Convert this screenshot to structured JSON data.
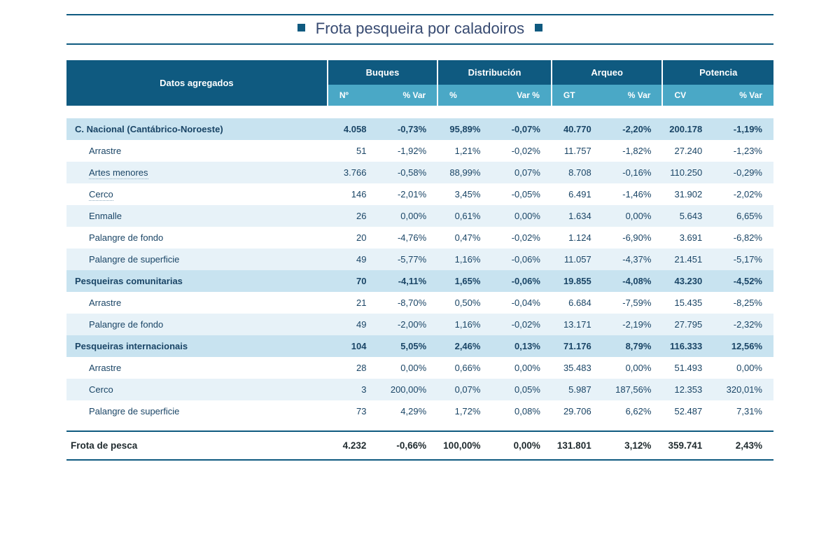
{
  "title": "Frota pesqueira por caladoiros",
  "colors": {
    "header_dark": "#0f5a80",
    "header_light": "#4aa8c6",
    "row_main": "#c8e3f0",
    "row_alt": "#e7f2f8",
    "text_title": "#374a71",
    "text_body": "#1a4566",
    "background": "#ffffff"
  },
  "typography": {
    "family": "Verdana",
    "title_size_pt": 16,
    "header_size_pt": 10,
    "body_size_pt": 10
  },
  "columns": {
    "first": "Datos agregados",
    "groups": [
      {
        "label": "Buques",
        "sub": [
          "Nº",
          "% Var"
        ]
      },
      {
        "label": "Distribución",
        "sub": [
          "%",
          "Var %"
        ]
      },
      {
        "label": "Arqueo",
        "sub": [
          "GT",
          "% Var"
        ]
      },
      {
        "label": "Potencia",
        "sub": [
          "CV",
          "% Var"
        ]
      }
    ]
  },
  "sections": [
    {
      "label": "C. Nacional (Cantábrico-Noroeste)",
      "values": [
        "4.058",
        "-0,73%",
        "95,89%",
        "-0,07%",
        "40.770",
        "-2,20%",
        "200.178",
        "-1,19%"
      ],
      "rows": [
        {
          "label": "Arrastre",
          "dotted": false,
          "alt": false,
          "values": [
            "51",
            "-1,92%",
            "1,21%",
            "-0,02%",
            "11.757",
            "-1,82%",
            "27.240",
            "-1,23%"
          ]
        },
        {
          "label": "Artes menores",
          "dotted": true,
          "alt": true,
          "values": [
            "3.766",
            "-0,58%",
            "88,99%",
            "0,07%",
            "8.708",
            "-0,16%",
            "110.250",
            "-0,29%"
          ]
        },
        {
          "label": "Cerco",
          "dotted": true,
          "alt": false,
          "values": [
            "146",
            "-2,01%",
            "3,45%",
            "-0,05%",
            "6.491",
            "-1,46%",
            "31.902",
            "-2,02%"
          ]
        },
        {
          "label": "Enmalle",
          "dotted": false,
          "alt": true,
          "values": [
            "26",
            "0,00%",
            "0,61%",
            "0,00%",
            "1.634",
            "0,00%",
            "5.643",
            "6,65%"
          ]
        },
        {
          "label": "Palangre de fondo",
          "dotted": false,
          "alt": false,
          "values": [
            "20",
            "-4,76%",
            "0,47%",
            "-0,02%",
            "1.124",
            "-6,90%",
            "3.691",
            "-6,82%"
          ]
        },
        {
          "label": "Palangre de superficie",
          "dotted": false,
          "alt": true,
          "values": [
            "49",
            "-5,77%",
            "1,16%",
            "-0,06%",
            "11.057",
            "-4,37%",
            "21.451",
            "-5,17%"
          ]
        }
      ]
    },
    {
      "label": "Pesqueiras comunitarias",
      "values": [
        "70",
        "-4,11%",
        "1,65%",
        "-0,06%",
        "19.855",
        "-4,08%",
        "43.230",
        "-4,52%"
      ],
      "rows": [
        {
          "label": "Arrastre",
          "dotted": false,
          "alt": false,
          "values": [
            "21",
            "-8,70%",
            "0,50%",
            "-0,04%",
            "6.684",
            "-7,59%",
            "15.435",
            "-8,25%"
          ]
        },
        {
          "label": "Palangre de fondo",
          "dotted": false,
          "alt": true,
          "values": [
            "49",
            "-2,00%",
            "1,16%",
            "-0,02%",
            "13.171",
            "-2,19%",
            "27.795",
            "-2,32%"
          ]
        }
      ]
    },
    {
      "label": "Pesqueiras internacionais",
      "values": [
        "104",
        "5,05%",
        "2,46%",
        "0,13%",
        "71.176",
        "8,79%",
        "116.333",
        "12,56%"
      ],
      "rows": [
        {
          "label": "Arrastre",
          "dotted": false,
          "alt": false,
          "values": [
            "28",
            "0,00%",
            "0,66%",
            "0,00%",
            "35.483",
            "0,00%",
            "51.493",
            "0,00%"
          ]
        },
        {
          "label": "Cerco",
          "dotted": false,
          "alt": true,
          "values": [
            "3",
            "200,00%",
            "0,07%",
            "0,05%",
            "5.987",
            "187,56%",
            "12.353",
            "320,01%"
          ]
        },
        {
          "label": "Palangre de superficie",
          "dotted": false,
          "alt": false,
          "values": [
            "73",
            "4,29%",
            "1,72%",
            "0,08%",
            "29.706",
            "6,62%",
            "52.487",
            "7,31%"
          ]
        }
      ]
    }
  ],
  "total": {
    "label": "Frota de pesca",
    "values": [
      "4.232",
      "-0,66%",
      "100,00%",
      "0,00%",
      "131.801",
      "3,12%",
      "359.741",
      "2,43%"
    ]
  }
}
